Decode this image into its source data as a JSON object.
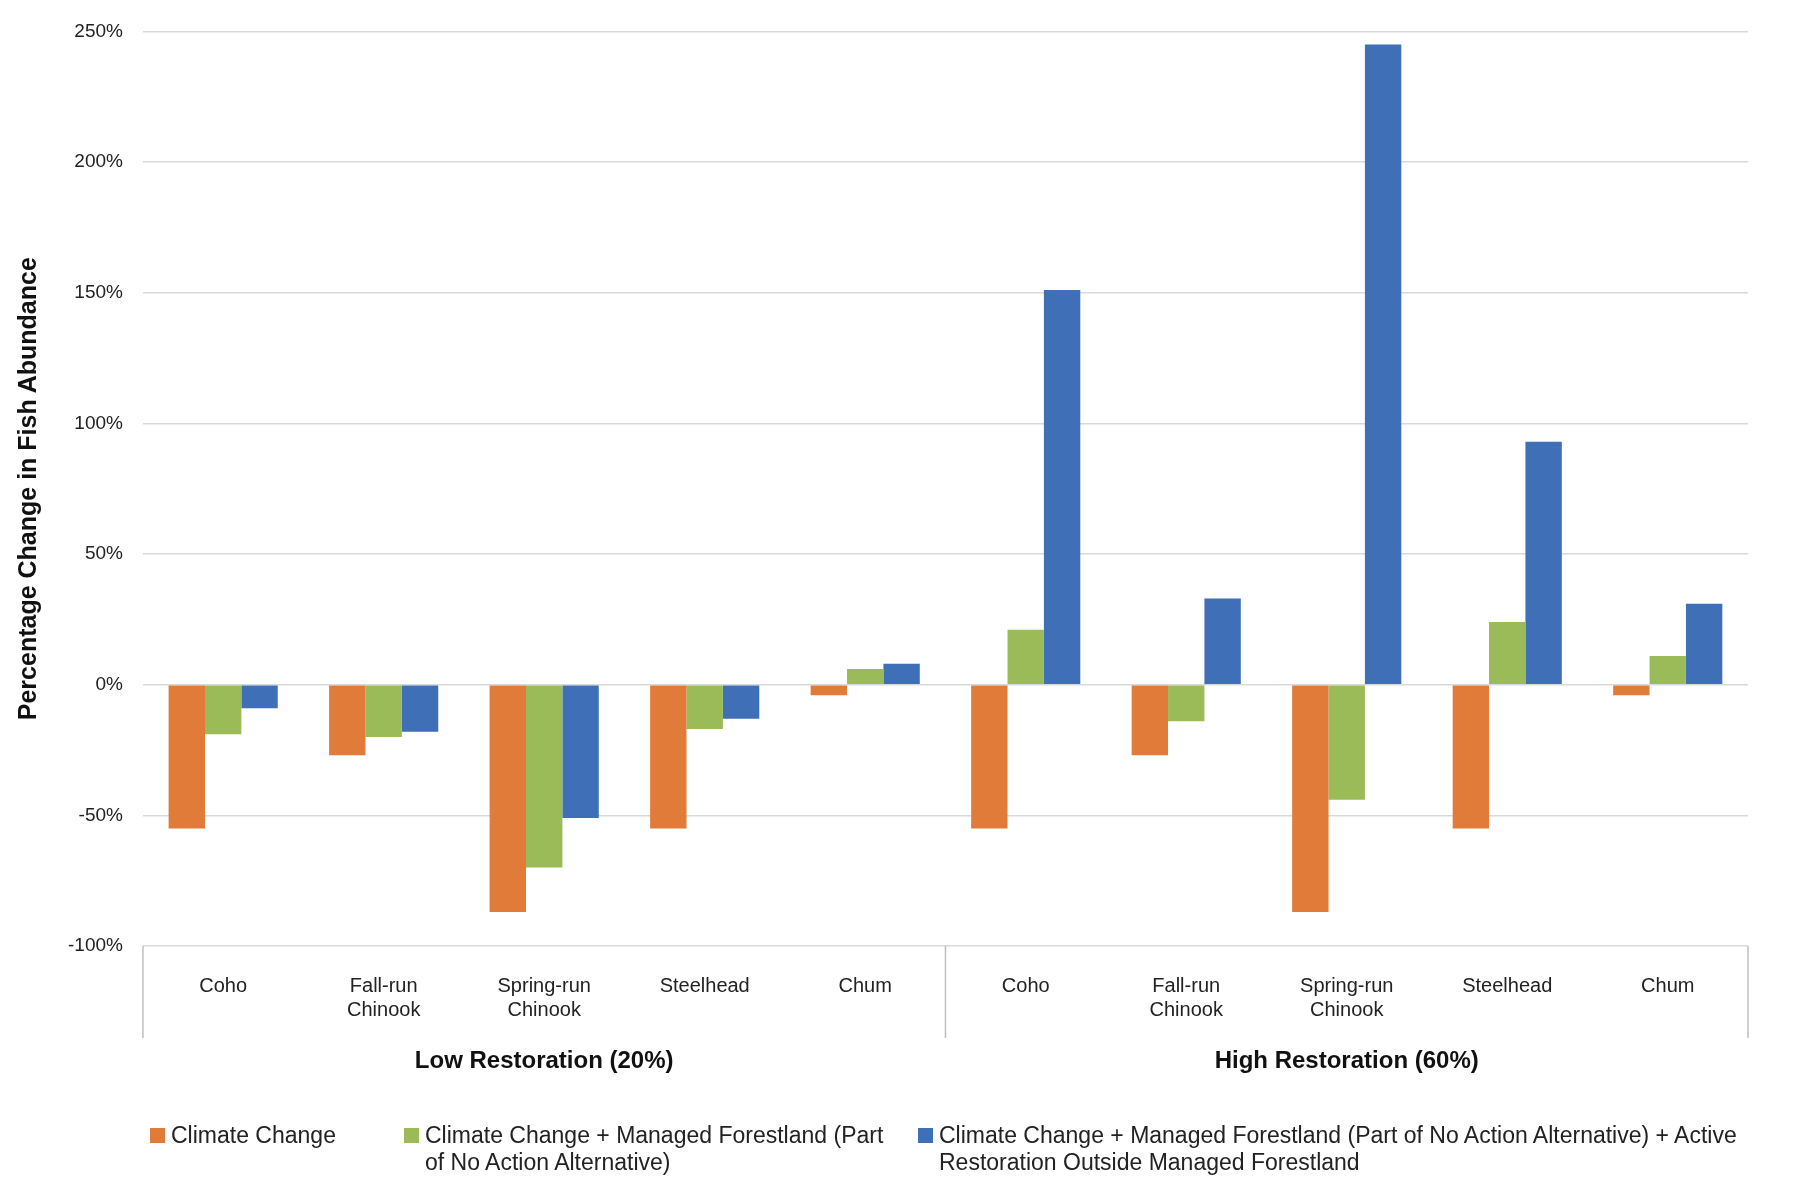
{
  "chart_data": {
    "type": "bar",
    "ylabel": "Percentage Change in Fish Abundance",
    "categories": [
      "Coho",
      "Fall-run Chinook",
      "Spring-run Chinook",
      "Steelhead",
      "Chum",
      "Coho",
      "Fall-run Chinook",
      "Spring-run Chinook",
      "Steelhead",
      "Chum"
    ],
    "series": [
      {
        "name": "Climate Change",
        "color": "#e07b39",
        "values": [
          -55,
          -27,
          -87,
          -55,
          -4,
          -55,
          -27,
          -87,
          -55,
          -4
        ]
      },
      {
        "name": "Climate Change + Managed Forestland (Part of No Action Alternative)",
        "color": "#9bbb59",
        "values": [
          -19,
          -20,
          -70,
          -17,
          6,
          21,
          -14,
          -44,
          24,
          11
        ]
      },
      {
        "name": "Climate Change + Managed Forestland (Part of No Action Alternative) + Active Restoration Outside Managed Forestland",
        "color": "#3f6fb6",
        "values": [
          -9,
          -18,
          -51,
          -13,
          8,
          151,
          33,
          245,
          93,
          31
        ]
      }
    ],
    "ylim": [
      -100,
      250
    ],
    "yticks": [
      {
        "value": -100,
        "label": "-100%"
      },
      {
        "value": -50,
        "label": "-50%"
      },
      {
        "value": 0,
        "label": "0%"
      },
      {
        "value": 50,
        "label": "50%"
      },
      {
        "value": 100,
        "label": "100%"
      },
      {
        "value": 150,
        "label": "150%"
      },
      {
        "value": 200,
        "label": "200%"
      },
      {
        "value": 250,
        "label": "250%"
      }
    ],
    "grid": "y",
    "legend": "bottom",
    "annotations": [
      "Low Restoration (20%)",
      "High Restoration (60%)"
    ]
  }
}
